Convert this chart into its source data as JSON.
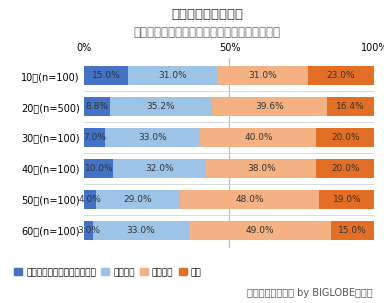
{
  "title_line1": "求める社会の方向性",
  "title_line2": "［格差が拡大しても、経済成長を求める社会］",
  "categories": [
    "10代(n=100)",
    "20代(n=500)",
    "30代(n=100)",
    "40代(n=100)",
    "50代(n=100)",
    "60代(n=100)"
  ],
  "series": {
    "近い": [
      15.0,
      8.8,
      7.0,
      10.0,
      4.0,
      3.0
    ],
    "やや近い": [
      31.0,
      35.2,
      33.0,
      32.0,
      29.0,
      33.0
    ],
    "やや遠い": [
      31.0,
      39.6,
      40.0,
      38.0,
      48.0,
      49.0
    ],
    "遠い": [
      23.0,
      16.4,
      20.0,
      20.0,
      19.0,
      15.0
    ]
  },
  "colors": {
    "近い": "#4472C4",
    "やや近い": "#9DC3E6",
    "やや遠い": "#F4B183",
    "遠い": "#E36F26"
  },
  "legend_labels": {
    "近い": "目身が求める方向性に：近い",
    "やや近い": "やや近い",
    "やや遠い": "やや遠い",
    "遠い": "遠い"
  },
  "xlabel_ticks": [
    0,
    50,
    100
  ],
  "xlabel_tick_labels": [
    "0%",
    "50%",
    "100%"
  ],
  "footnote": "「あしたメディア by BIGLOBE」調べ",
  "bg_color": "#FFFFFF",
  "bar_height": 0.62,
  "title_fontsize": 9.5,
  "title2_fontsize": 8.5,
  "label_fontsize": 6.5,
  "tick_fontsize": 7,
  "legend_fontsize": 6.5,
  "footnote_fontsize": 7
}
